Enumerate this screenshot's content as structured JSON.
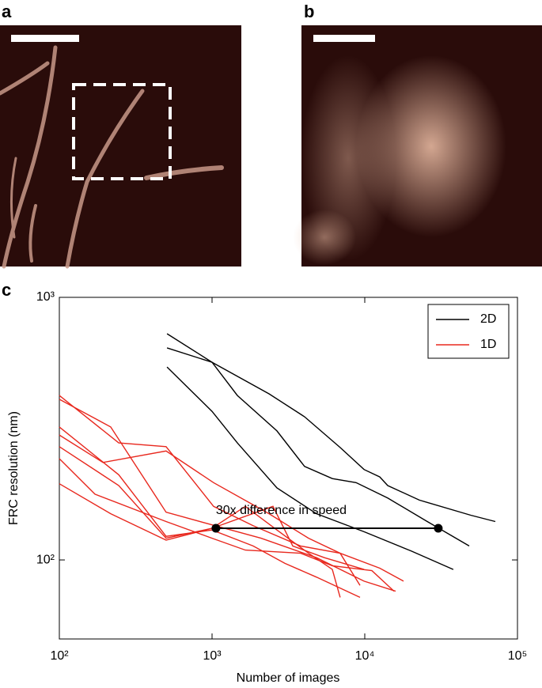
{
  "panel_labels": [
    "a",
    "b",
    "c"
  ],
  "chart_data": {
    "type": "line",
    "xlabel": "Number of images",
    "ylabel": "FRC resolution (nm)",
    "xscale": "log",
    "yscale": "log",
    "xlim": [
      100,
      100000
    ],
    "ylim": [
      50,
      1000
    ],
    "xticks": [
      {
        "value": 100,
        "label": "10²"
      },
      {
        "value": 1000,
        "label": "10³"
      },
      {
        "value": 10000,
        "label": "10⁴"
      },
      {
        "value": 100000,
        "label": "10⁵"
      }
    ],
    "yticks": [
      {
        "value": 100,
        "label": "10²"
      },
      {
        "value": 1000,
        "label": "10³"
      }
    ],
    "legend": "upper right",
    "series": [
      {
        "name": "2D",
        "color": "#000000",
        "lines": [
          {
            "x": [
              507,
              1000,
              2360,
              4036,
              6900,
              9890,
              12540,
              14140,
              22790,
              49400,
              71600
            ],
            "values": [
              727,
              566,
              429,
              351,
              268,
              221,
              207,
              192,
              169,
              148,
              140
            ]
          },
          {
            "x": [
              507,
              1000,
              1465,
              2660,
              4036,
              6135,
              8770,
              14140,
              25650,
              48300
            ],
            "values": [
              642,
              566,
              423,
              310,
              227,
              204,
              197,
              172,
              140,
              113
            ]
          },
          {
            "x": [
              507,
              1000,
              1465,
              2660,
              4830,
              9890,
              20220,
              38020
            ],
            "values": [
              543,
              368,
              279,
              188,
              150,
              128,
              108,
              92
            ]
          }
        ]
      },
      {
        "name": "1D",
        "color": "#e8281e",
        "lines": [
          {
            "x": [
              100,
              245,
              500,
              1023,
              1858,
              3800,
              6900,
              12540,
              17950
            ],
            "values": [
              423,
              279,
              270,
              160,
              135,
              113,
              106,
              93,
              83
            ]
          },
          {
            "x": [
              100,
              217,
              500,
              1000,
              2094,
              4830,
              9890,
              15920
            ],
            "values": [
              409,
              321,
              152,
              136,
              121,
              102,
              83,
              76
            ]
          },
          {
            "x": [
              100,
              193,
              500,
              1023,
              2360,
              4285,
              6900,
              9310
            ],
            "values": [
              299,
              235,
              260,
              197,
              150,
              121,
              106,
              80
            ]
          },
          {
            "x": [
              100,
              245,
              500,
              1000,
              1652,
              2660,
              4285,
              6135,
              6900
            ],
            "values": [
              270,
              192,
              121,
              132,
              160,
              130,
              106,
              92,
              72
            ]
          },
          {
            "x": [
              100,
              171,
              500,
              1000,
              1652,
              3800,
              6135,
              11140,
              15550
            ],
            "values": [
              243,
              178,
              140,
              121,
              109,
              106,
              95,
              91,
              76
            ]
          },
          {
            "x": [
              100,
              217,
              500,
              1000,
              2506,
              3375,
              5445,
              9890
            ],
            "values": [
              195,
              150,
              119,
              132,
              160,
              113,
              102,
              92
            ]
          },
          {
            "x": [
              100,
              245,
              500,
              1000,
              1858,
              2999,
              4830,
              9310
            ],
            "values": [
              321,
              211,
              123,
              130,
              113,
              97,
              86,
              72
            ]
          }
        ]
      }
    ],
    "annotation": {
      "text": "30x difference in speed",
      "x": [
        1060,
        30300
      ],
      "y": [
        132,
        132
      ]
    }
  }
}
